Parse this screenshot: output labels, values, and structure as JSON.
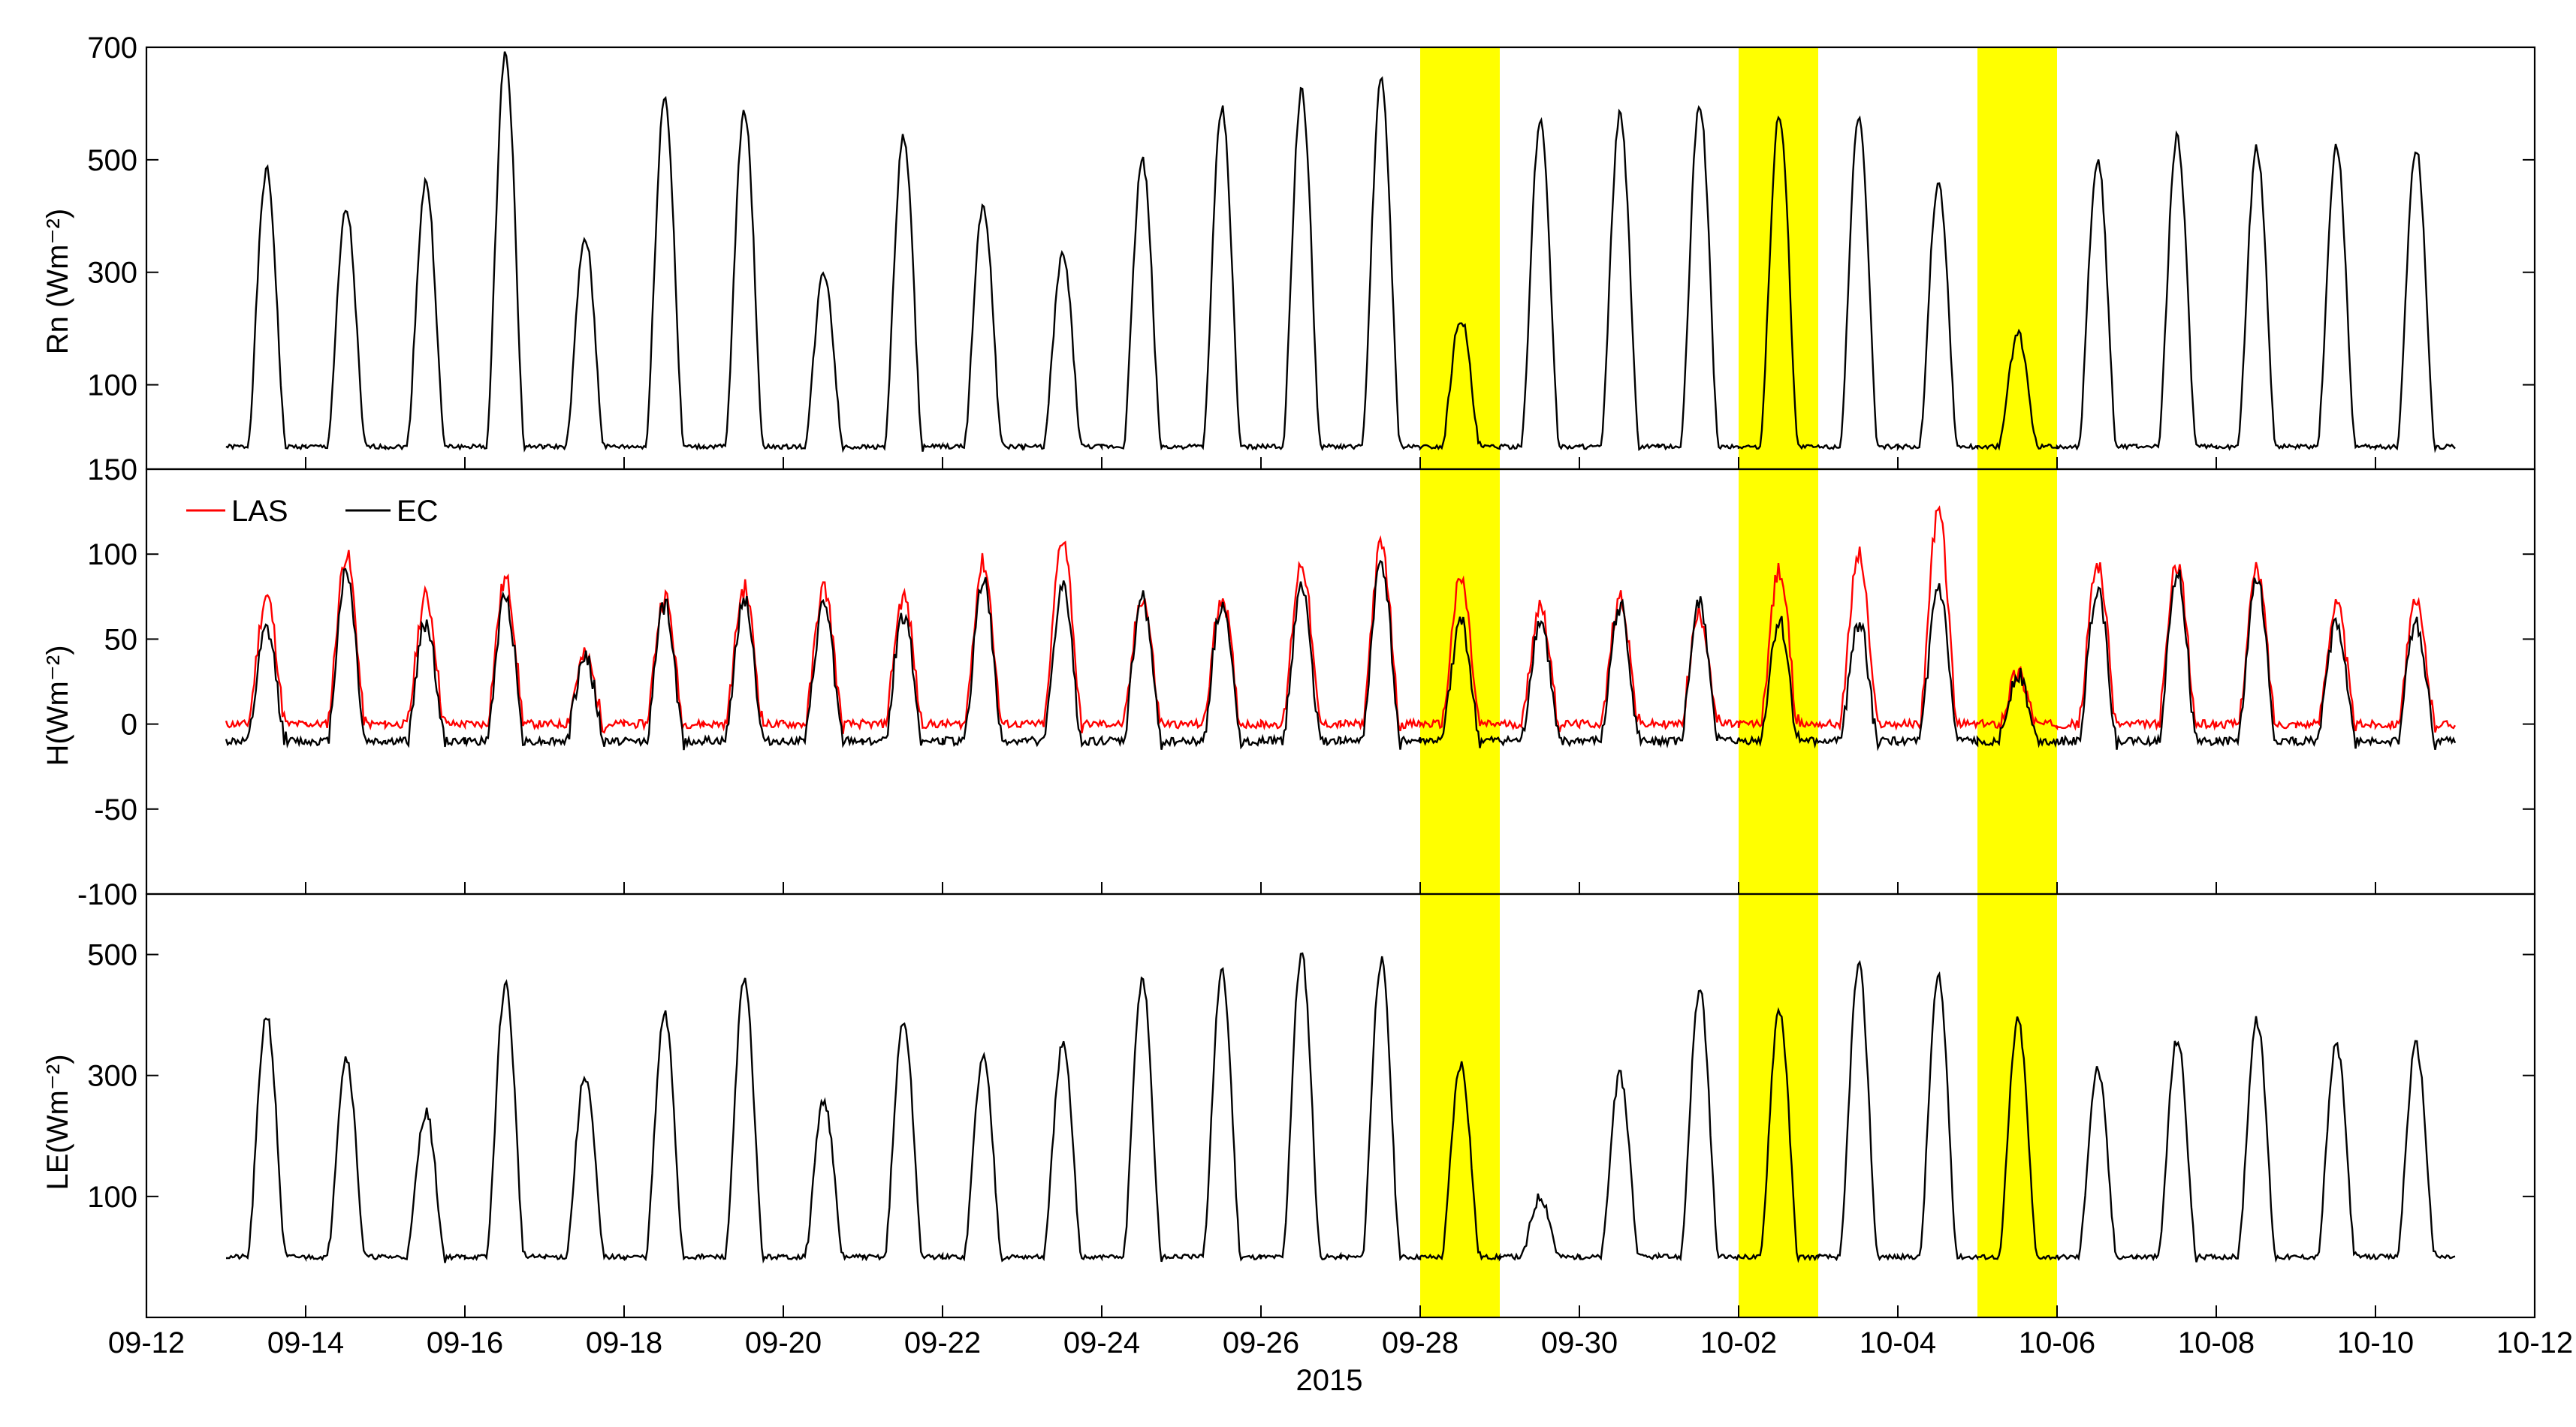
{
  "chart_data": {
    "type": "line",
    "xlabel": "2015",
    "x_ticks": [
      "09-12",
      "09-14",
      "09-16",
      "09-18",
      "09-20",
      "09-22",
      "09-24",
      "09-26",
      "09-28",
      "09-30",
      "10-02",
      "10-04",
      "10-06",
      "10-08",
      "10-10",
      "10-12"
    ],
    "xlim": [
      "2015-09-12",
      "2015-10-12"
    ],
    "highlight_bands": [
      {
        "start": "2015-09-28",
        "end": "2015-09-29",
        "color": "#ffff00"
      },
      {
        "start": "2015-10-02",
        "end": "2015-10-03",
        "color": "#ffff00"
      },
      {
        "start": "2015-10-05",
        "end": "2015-10-06",
        "color": "#ffff00"
      }
    ],
    "days": [
      "09-13",
      "09-14",
      "09-15",
      "09-16",
      "09-17",
      "09-18",
      "09-19",
      "09-20",
      "09-21",
      "09-22",
      "09-23",
      "09-24",
      "09-25",
      "09-26",
      "09-27",
      "09-28",
      "09-29",
      "09-30",
      "10-01",
      "10-02",
      "10-03",
      "10-04",
      "10-05",
      "10-06",
      "10-07",
      "10-08",
      "10-09",
      "10-10"
    ],
    "panels": [
      {
        "ylabel": "Rn (Wm⁻²)",
        "ylim": [
          -50,
          700
        ],
        "yticks": [
          "100",
          "300",
          "500",
          "700"
        ],
        "ytick_values": [
          100,
          300,
          500,
          700
        ],
        "series": [
          {
            "name": "",
            "color": "#000000",
            "night": -10,
            "peaks": [
              480,
              410,
              460,
              690,
              360,
              610,
              590,
              300,
              540,
              420,
              330,
              500,
              590,
              620,
              640,
              220,
              570,
              580,
              600,
              580,
              570,
              460,
              190,
              500,
              540,
              520,
              520,
              520
            ]
          }
        ]
      },
      {
        "ylabel": "H(Wm⁻²)",
        "ylim": [
          -100,
          150
        ],
        "yticks": [
          "-100",
          "-50",
          "0",
          "50",
          "100",
          "150"
        ],
        "ytick_values": [
          -100,
          -50,
          0,
          50,
          100,
          150
        ],
        "legend": [
          {
            "label": "LAS",
            "color": "#ff0000"
          },
          {
            "label": "EC",
            "color": "#000000"
          }
        ],
        "series": [
          {
            "name": "LAS",
            "color": "#ff0000",
            "night": 0,
            "peaks": [
              75,
              100,
              75,
              85,
              40,
              75,
              80,
              80,
              75,
              95,
              110,
              75,
              75,
              95,
              105,
              85,
              70,
              75,
              65,
              90,
              100,
              125,
              30,
              95,
              95,
              90,
              70,
              70
            ]
          },
          {
            "name": "EC",
            "color": "#000000",
            "night": -10,
            "peaks": [
              55,
              90,
              60,
              75,
              40,
              70,
              75,
              70,
              65,
              85,
              80,
              75,
              70,
              80,
              95,
              60,
              60,
              70,
              70,
              60,
              60,
              80,
              30,
              80,
              90,
              85,
              60,
              60
            ]
          }
        ]
      },
      {
        "ylabel": "LE(Wm⁻²)",
        "ylim": [
          -100,
          600
        ],
        "yticks": [
          "100",
          "300",
          "500"
        ],
        "ytick_values": [
          100,
          300,
          500
        ],
        "series": [
          {
            "name": "",
            "color": "#000000",
            "night": 0,
            "peaks": [
              400,
              330,
              240,
              450,
              300,
              400,
              455,
              260,
              390,
              330,
              350,
              460,
              470,
              500,
              490,
              320,
              100,
              300,
              440,
              410,
              480,
              460,
              390,
              310,
              360,
              390,
              350,
              350
            ]
          }
        ]
      }
    ]
  }
}
